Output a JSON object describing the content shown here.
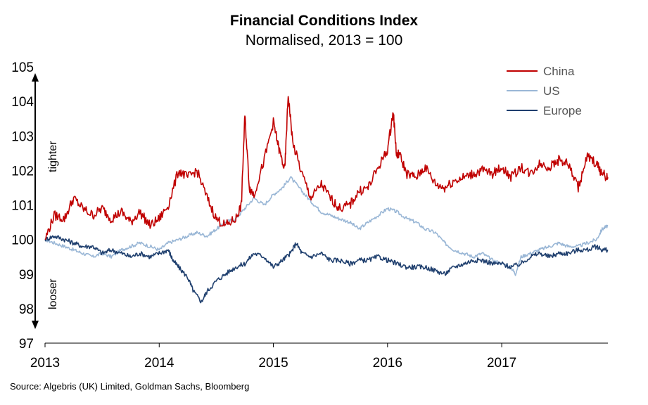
{
  "title": "Financial Conditions Index",
  "subtitle": "Normalised, 2013 = 100",
  "source": "Source: Algebris (UK) Limited, Goldman Sachs, Bloomberg",
  "annotations": {
    "tighter": "tighter",
    "looser": "looser"
  },
  "colors": {
    "China": "#c00000",
    "US": "#9ab7d6",
    "Europe": "#1f3f6e",
    "axis": "#000000"
  },
  "chart_data": {
    "type": "line",
    "title": "Financial Conditions Index",
    "subtitle": "Normalised, 2013 = 100",
    "xlabel": "",
    "ylabel": "",
    "xlim": [
      2013.0,
      2017.93
    ],
    "ylim": [
      97,
      105
    ],
    "yticks": [
      97,
      98,
      99,
      100,
      101,
      102,
      103,
      104,
      105
    ],
    "xticks": [
      2013,
      2014,
      2015,
      2016,
      2017
    ],
    "grid": false,
    "legend": "top-right",
    "series": [
      {
        "name": "China",
        "x": [
          2013.0,
          2013.08,
          2013.17,
          2013.25,
          2013.33,
          2013.42,
          2013.5,
          2013.58,
          2013.67,
          2013.75,
          2013.83,
          2013.92,
          2014.0,
          2014.08,
          2014.17,
          2014.25,
          2014.33,
          2014.42,
          2014.5,
          2014.58,
          2014.67,
          2014.72,
          2014.75,
          2014.79,
          2014.83,
          2014.92,
          2015.0,
          2015.05,
          2015.1,
          2015.13,
          2015.17,
          2015.25,
          2015.33,
          2015.42,
          2015.5,
          2015.58,
          2015.67,
          2015.75,
          2015.83,
          2015.92,
          2016.0,
          2016.05,
          2016.08,
          2016.1,
          2016.17,
          2016.25,
          2016.33,
          2016.42,
          2016.5,
          2016.58,
          2016.67,
          2016.75,
          2016.83,
          2016.92,
          2017.0,
          2017.08,
          2017.17,
          2017.25,
          2017.33,
          2017.42,
          2017.5,
          2017.58,
          2017.67,
          2017.75,
          2017.83,
          2017.88,
          2017.93
        ],
        "values": [
          100.0,
          100.7,
          100.6,
          101.2,
          100.9,
          100.7,
          100.9,
          100.6,
          100.8,
          100.5,
          100.8,
          100.4,
          100.6,
          101.0,
          102.0,
          101.8,
          102.0,
          101.2,
          100.6,
          100.4,
          100.6,
          101.0,
          103.6,
          101.5,
          101.3,
          102.3,
          103.4,
          102.6,
          102.0,
          104.2,
          102.8,
          101.9,
          101.2,
          101.6,
          101.2,
          100.9,
          101.0,
          101.4,
          101.5,
          102.1,
          102.6,
          103.7,
          102.4,
          102.5,
          101.9,
          101.8,
          102.1,
          101.6,
          101.5,
          101.7,
          101.8,
          101.9,
          102.0,
          101.9,
          102.1,
          101.8,
          102.1,
          101.9,
          102.2,
          102.1,
          102.3,
          102.2,
          101.5,
          102.4,
          102.2,
          101.9,
          101.8
        ]
      },
      {
        "name": "US",
        "x": [
          2013.0,
          2013.08,
          2013.17,
          2013.25,
          2013.33,
          2013.42,
          2013.5,
          2013.58,
          2013.67,
          2013.75,
          2013.83,
          2013.92,
          2014.0,
          2014.08,
          2014.17,
          2014.25,
          2014.33,
          2014.42,
          2014.5,
          2014.58,
          2014.67,
          2014.75,
          2014.83,
          2014.92,
          2015.0,
          2015.08,
          2015.15,
          2015.25,
          2015.33,
          2015.42,
          2015.5,
          2015.58,
          2015.67,
          2015.75,
          2015.83,
          2015.92,
          2016.0,
          2016.08,
          2016.17,
          2016.25,
          2016.33,
          2016.42,
          2016.5,
          2016.58,
          2016.67,
          2016.75,
          2016.83,
          2016.92,
          2017.0,
          2017.08,
          2017.12,
          2017.17,
          2017.25,
          2017.33,
          2017.42,
          2017.5,
          2017.58,
          2017.67,
          2017.75,
          2017.83,
          2017.88,
          2017.93
        ],
        "values": [
          100.0,
          99.9,
          99.8,
          99.7,
          99.6,
          99.5,
          99.6,
          99.5,
          99.7,
          99.8,
          99.9,
          99.8,
          99.7,
          99.9,
          100.0,
          100.1,
          100.2,
          100.1,
          100.3,
          100.5,
          100.6,
          100.9,
          101.2,
          101.0,
          101.3,
          101.5,
          101.8,
          101.4,
          101.1,
          100.8,
          100.7,
          100.6,
          100.5,
          100.3,
          100.5,
          100.7,
          100.9,
          100.8,
          100.6,
          100.5,
          100.3,
          100.2,
          99.9,
          99.7,
          99.6,
          99.5,
          99.6,
          99.4,
          99.3,
          99.2,
          99.0,
          99.5,
          99.6,
          99.7,
          99.8,
          99.9,
          99.8,
          99.8,
          99.9,
          100.0,
          100.3,
          100.4
        ]
      },
      {
        "name": "Europe",
        "x": [
          2013.0,
          2013.08,
          2013.17,
          2013.25,
          2013.33,
          2013.42,
          2013.5,
          2013.58,
          2013.67,
          2013.75,
          2013.83,
          2013.92,
          2014.0,
          2014.08,
          2014.12,
          2014.17,
          2014.25,
          2014.3,
          2014.37,
          2014.42,
          2014.5,
          2014.58,
          2014.67,
          2014.75,
          2014.83,
          2014.92,
          2015.0,
          2015.08,
          2015.15,
          2015.2,
          2015.25,
          2015.33,
          2015.42,
          2015.5,
          2015.58,
          2015.67,
          2015.75,
          2015.83,
          2015.92,
          2016.0,
          2016.08,
          2016.17,
          2016.25,
          2016.33,
          2016.42,
          2016.5,
          2016.58,
          2016.67,
          2016.75,
          2016.83,
          2016.92,
          2017.0,
          2017.08,
          2017.17,
          2017.25,
          2017.33,
          2017.42,
          2017.5,
          2017.58,
          2017.67,
          2017.75,
          2017.83,
          2017.88,
          2017.93
        ],
        "values": [
          100.0,
          100.1,
          100.0,
          99.9,
          99.8,
          99.8,
          99.6,
          99.7,
          99.6,
          99.5,
          99.6,
          99.5,
          99.6,
          99.7,
          99.4,
          99.2,
          98.9,
          98.5,
          98.2,
          98.5,
          98.8,
          99.0,
          99.2,
          99.3,
          99.6,
          99.5,
          99.2,
          99.4,
          99.6,
          99.9,
          99.6,
          99.5,
          99.6,
          99.4,
          99.4,
          99.3,
          99.4,
          99.4,
          99.5,
          99.4,
          99.3,
          99.2,
          99.2,
          99.2,
          99.1,
          99.0,
          99.2,
          99.3,
          99.4,
          99.4,
          99.3,
          99.3,
          99.2,
          99.3,
          99.5,
          99.6,
          99.5,
          99.6,
          99.6,
          99.7,
          99.7,
          99.8,
          99.7,
          99.7
        ]
      }
    ]
  }
}
